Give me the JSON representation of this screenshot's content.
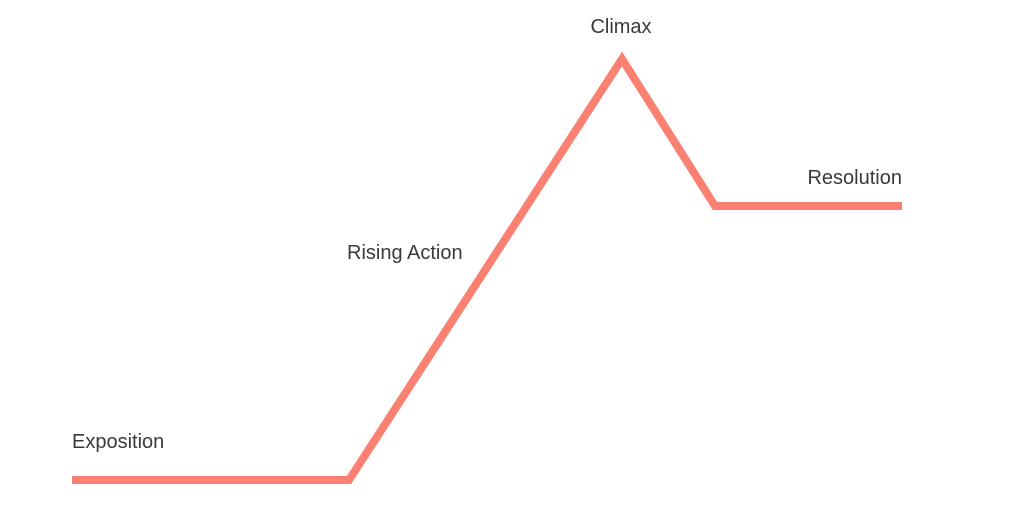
{
  "diagram": {
    "type": "plot-arc",
    "line_color": "#fa8072",
    "label_color": "#3a3a3a",
    "stages": {
      "exposition": "Exposition",
      "rising_action": "Rising Action",
      "climax": "Climax",
      "resolution": "Resolution"
    }
  }
}
